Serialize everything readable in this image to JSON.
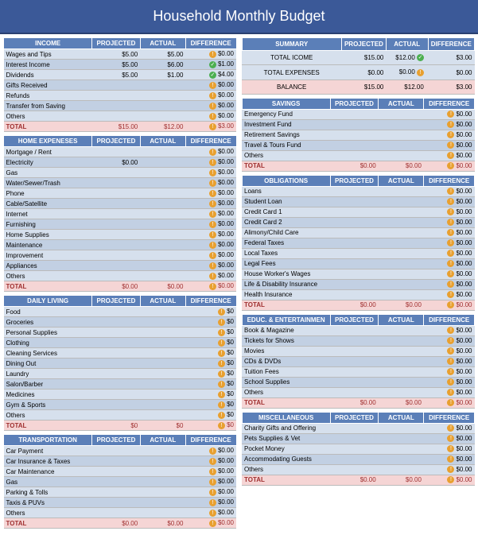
{
  "title": "Household Monthly Budget",
  "colors": {
    "header_bg": "#3b5998",
    "section_bg": "#5b7fb8",
    "row_even": "#d6e0ed",
    "row_odd": "#c2d0e3",
    "total_bg": "#f5d5d5",
    "warn_icon": "#e8a030",
    "ok_icon": "#4caf50"
  },
  "columns": [
    "PROJECTED",
    "ACTUAL",
    "DIFFERENCE"
  ],
  "summary": {
    "title": "SUMMARY",
    "rows": [
      {
        "label": "TOTAL ICOME",
        "projected": "$15.00",
        "actual": "$12.00",
        "icon": "ok",
        "diff": "$3.00"
      },
      {
        "label": "TOTAL EXPENSES",
        "projected": "$0.00",
        "actual": "$0.00",
        "icon": "warn",
        "diff": "$0.00"
      },
      {
        "label": "BALANCE",
        "projected": "$15.00",
        "actual": "$12.00",
        "icon": "",
        "diff": "$3.00"
      }
    ]
  },
  "left_sections": [
    {
      "title": "INCOME",
      "rows": [
        {
          "label": "Wages and Tips",
          "projected": "$5.00",
          "actual": "$5.00",
          "icon": "warn",
          "diff": "$0.00"
        },
        {
          "label": "Interest Income",
          "projected": "$5.00",
          "actual": "$6.00",
          "icon": "ok",
          "diff": "$1.00"
        },
        {
          "label": "Dividends",
          "projected": "$5.00",
          "actual": "$1.00",
          "icon": "ok",
          "diff": "$4.00"
        },
        {
          "label": "Gifts Received",
          "projected": "",
          "actual": "",
          "icon": "warn",
          "diff": "$0.00"
        },
        {
          "label": "Refunds",
          "projected": "",
          "actual": "",
          "icon": "warn",
          "diff": "$0.00"
        },
        {
          "label": "Transfer from Saving",
          "projected": "",
          "actual": "",
          "icon": "warn",
          "diff": "$0.00"
        },
        {
          "label": "Others",
          "projected": "",
          "actual": "",
          "icon": "warn",
          "diff": "$0.00"
        }
      ],
      "total": {
        "label": "TOTAL",
        "projected": "$15.00",
        "actual": "$12.00",
        "icon": "warn",
        "diff": "$3.00"
      }
    },
    {
      "title": "HOME EXPENESES",
      "rows": [
        {
          "label": "Mortgage / Rent",
          "projected": "",
          "actual": "",
          "icon": "warn",
          "diff": "$0.00"
        },
        {
          "label": "Electricity",
          "projected": "$0.00",
          "actual": "",
          "icon": "warn",
          "diff": "$0.00"
        },
        {
          "label": "Gas",
          "projected": "",
          "actual": "",
          "icon": "warn",
          "diff": "$0.00"
        },
        {
          "label": "Water/Sewer/Trash",
          "projected": "",
          "actual": "",
          "icon": "warn",
          "diff": "$0.00"
        },
        {
          "label": "Phone",
          "projected": "",
          "actual": "",
          "icon": "warn",
          "diff": "$0.00"
        },
        {
          "label": "Cable/Satellite",
          "projected": "",
          "actual": "",
          "icon": "warn",
          "diff": "$0.00"
        },
        {
          "label": "Internet",
          "projected": "",
          "actual": "",
          "icon": "warn",
          "diff": "$0.00"
        },
        {
          "label": "Furnishing",
          "projected": "",
          "actual": "",
          "icon": "warn",
          "diff": "$0.00"
        },
        {
          "label": "Home Supplies",
          "projected": "",
          "actual": "",
          "icon": "warn",
          "diff": "$0.00"
        },
        {
          "label": "Maintenance",
          "projected": "",
          "actual": "",
          "icon": "warn",
          "diff": "$0.00"
        },
        {
          "label": "Improvement",
          "projected": "",
          "actual": "",
          "icon": "warn",
          "diff": "$0.00"
        },
        {
          "label": "Appliances",
          "projected": "",
          "actual": "",
          "icon": "warn",
          "diff": "$0.00"
        },
        {
          "label": "Others",
          "projected": "",
          "actual": "",
          "icon": "warn",
          "diff": "$0.00"
        }
      ],
      "total": {
        "label": "TOTAL",
        "projected": "$0.00",
        "actual": "$0.00",
        "icon": "warn",
        "diff": "$0.00"
      }
    },
    {
      "title": "DAILY LIVING",
      "rows": [
        {
          "label": "Food",
          "projected": "",
          "actual": "",
          "icon": "warn",
          "diff": "$0"
        },
        {
          "label": "Groceries",
          "projected": "",
          "actual": "",
          "icon": "warn",
          "diff": "$0"
        },
        {
          "label": "Personal Supplies",
          "projected": "",
          "actual": "",
          "icon": "warn",
          "diff": "$0"
        },
        {
          "label": "Clothing",
          "projected": "",
          "actual": "",
          "icon": "warn",
          "diff": "$0"
        },
        {
          "label": "Cleaning Services",
          "projected": "",
          "actual": "",
          "icon": "warn",
          "diff": "$0"
        },
        {
          "label": "Dining Out",
          "projected": "",
          "actual": "",
          "icon": "warn",
          "diff": "$0"
        },
        {
          "label": "Laundry",
          "projected": "",
          "actual": "",
          "icon": "warn",
          "diff": "$0"
        },
        {
          "label": "Salon/Barber",
          "projected": "",
          "actual": "",
          "icon": "warn",
          "diff": "$0"
        },
        {
          "label": "Medicines",
          "projected": "",
          "actual": "",
          "icon": "warn",
          "diff": "$0"
        },
        {
          "label": "Gym & Sports",
          "projected": "",
          "actual": "",
          "icon": "warn",
          "diff": "$0"
        },
        {
          "label": "Others",
          "projected": "",
          "actual": "",
          "icon": "warn",
          "diff": "$0"
        }
      ],
      "total": {
        "label": "TOTAL",
        "projected": "$0",
        "actual": "$0",
        "icon": "warn",
        "diff": "$0"
      }
    },
    {
      "title": "TRANSPORTATION",
      "rows": [
        {
          "label": "Car Payment",
          "projected": "",
          "actual": "",
          "icon": "warn",
          "diff": "$0.00"
        },
        {
          "label": "Car Insurance & Taxes",
          "projected": "",
          "actual": "",
          "icon": "warn",
          "diff": "$0.00"
        },
        {
          "label": "Car Maintenance",
          "projected": "",
          "actual": "",
          "icon": "warn",
          "diff": "$0.00"
        },
        {
          "label": "Gas",
          "projected": "",
          "actual": "",
          "icon": "warn",
          "diff": "$0.00"
        },
        {
          "label": "Parking & Tolls",
          "projected": "",
          "actual": "",
          "icon": "warn",
          "diff": "$0.00"
        },
        {
          "label": "Taxis & PUVs",
          "projected": "",
          "actual": "",
          "icon": "warn",
          "diff": "$0.00"
        },
        {
          "label": "Others",
          "projected": "",
          "actual": "",
          "icon": "warn",
          "diff": "$0.00"
        }
      ],
      "total": {
        "label": "TOTAL",
        "projected": "$0.00",
        "actual": "$0.00",
        "icon": "warn",
        "diff": "$0.00"
      }
    }
  ],
  "right_sections": [
    {
      "title": "SAVINGS",
      "rows": [
        {
          "label": "Emergency Fund",
          "projected": "",
          "actual": "",
          "icon": "warn",
          "diff": "$0.00"
        },
        {
          "label": "Investment Fund",
          "projected": "",
          "actual": "",
          "icon": "warn",
          "diff": "$0.00"
        },
        {
          "label": "Retirement Savings",
          "projected": "",
          "actual": "",
          "icon": "warn",
          "diff": "$0.00"
        },
        {
          "label": "Travel & Tours Fund",
          "projected": "",
          "actual": "",
          "icon": "warn",
          "diff": "$0.00"
        },
        {
          "label": "Others",
          "projected": "",
          "actual": "",
          "icon": "warn",
          "diff": "$0.00"
        }
      ],
      "total": {
        "label": "TOTAL",
        "projected": "$0.00",
        "actual": "$0.00",
        "icon": "warn",
        "diff": "$0.00"
      }
    },
    {
      "title": "OBLIGATIONS",
      "rows": [
        {
          "label": "Loans",
          "projected": "",
          "actual": "",
          "icon": "warn",
          "diff": "$0.00"
        },
        {
          "label": "Student Loan",
          "projected": "",
          "actual": "",
          "icon": "warn",
          "diff": "$0.00"
        },
        {
          "label": "Credit Card 1",
          "projected": "",
          "actual": "",
          "icon": "warn",
          "diff": "$0.00"
        },
        {
          "label": "Credit Card 2",
          "projected": "",
          "actual": "",
          "icon": "warn",
          "diff": "$0.00"
        },
        {
          "label": "Alimony/Child Care",
          "projected": "",
          "actual": "",
          "icon": "warn",
          "diff": "$0.00"
        },
        {
          "label": "Federal Taxes",
          "projected": "",
          "actual": "",
          "icon": "warn",
          "diff": "$0.00"
        },
        {
          "label": "Local Taxes",
          "projected": "",
          "actual": "",
          "icon": "warn",
          "diff": "$0.00"
        },
        {
          "label": "Legal Fees",
          "projected": "",
          "actual": "",
          "icon": "warn",
          "diff": "$0.00"
        },
        {
          "label": "House Worker's Wages",
          "projected": "",
          "actual": "",
          "icon": "warn",
          "diff": "$0.00"
        },
        {
          "label": "Life & Disability Insurance",
          "projected": "",
          "actual": "",
          "icon": "warn",
          "diff": "$0.00"
        },
        {
          "label": "Health Insurance",
          "projected": "",
          "actual": "",
          "icon": "warn",
          "diff": "$0.00"
        }
      ],
      "total": {
        "label": "TOTAL",
        "projected": "$0.00",
        "actual": "$0.00",
        "icon": "warn",
        "diff": "$0.00"
      }
    },
    {
      "title": "EDUC. & ENTERTAINMEN",
      "rows": [
        {
          "label": "Book & Magazine",
          "projected": "",
          "actual": "",
          "icon": "warn",
          "diff": "$0.00"
        },
        {
          "label": "Tickets for Shows",
          "projected": "",
          "actual": "",
          "icon": "warn",
          "diff": "$0.00"
        },
        {
          "label": "Movies",
          "projected": "",
          "actual": "",
          "icon": "warn",
          "diff": "$0.00"
        },
        {
          "label": "CDs & DVDs",
          "projected": "",
          "actual": "",
          "icon": "warn",
          "diff": "$0.00"
        },
        {
          "label": "Tuition Fees",
          "projected": "",
          "actual": "",
          "icon": "warn",
          "diff": "$0.00"
        },
        {
          "label": "School Supplies",
          "projected": "",
          "actual": "",
          "icon": "warn",
          "diff": "$0.00"
        },
        {
          "label": "Others",
          "projected": "",
          "actual": "",
          "icon": "warn",
          "diff": "$0.00"
        }
      ],
      "total": {
        "label": "TOTAL",
        "projected": "$0.00",
        "actual": "$0.00",
        "icon": "warn",
        "diff": "$0.00"
      }
    },
    {
      "title": "MISCELLANEOUS",
      "rows": [
        {
          "label": "Charity Gifts and Offering",
          "projected": "",
          "actual": "",
          "icon": "warn",
          "diff": "$0.00"
        },
        {
          "label": "Pets Supplies & Vet",
          "projected": "",
          "actual": "",
          "icon": "warn",
          "diff": "$0.00"
        },
        {
          "label": "Pocket Money",
          "projected": "",
          "actual": "",
          "icon": "warn",
          "diff": "$0.00"
        },
        {
          "label": "Accommodating Guests",
          "projected": "",
          "actual": "",
          "icon": "warn",
          "diff": "$0.00"
        },
        {
          "label": "Others",
          "projected": "",
          "actual": "",
          "icon": "warn",
          "diff": "$0.00"
        }
      ],
      "total": {
        "label": "TOTAL",
        "projected": "$0.00",
        "actual": "$0.00",
        "icon": "warn",
        "diff": "$0.00"
      }
    }
  ]
}
